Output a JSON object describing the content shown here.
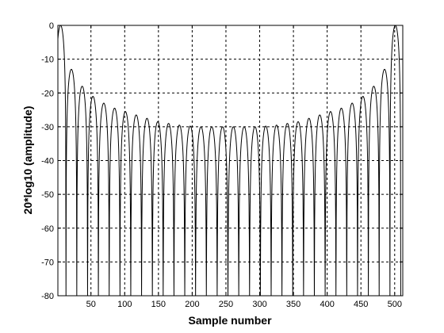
{
  "chart_data": {
    "type": "line",
    "title": "",
    "xlabel": "Sample number",
    "ylabel": "20*log10 (amplitude)",
    "xlim": [
      1,
      512
    ],
    "ylim": [
      -80,
      0
    ],
    "xticks": [
      50,
      100,
      150,
      200,
      250,
      300,
      350,
      400,
      450,
      500
    ],
    "yticks": [
      0,
      -10,
      -20,
      -30,
      -40,
      -50,
      -60,
      -70,
      -80
    ],
    "grid": true,
    "series": [
      {
        "description": "Periodic lobed magnitude curve; each lobe peaks at the listed value and nulls drop below the lower limit",
        "lobe_center_x": [
          5,
          21,
          37,
          53,
          69,
          85,
          101,
          117,
          133,
          149,
          165,
          181,
          197,
          213,
          229,
          245,
          261,
          277,
          293,
          309,
          325,
          341,
          357,
          373,
          389,
          405,
          421,
          437,
          453,
          469,
          485,
          501
        ],
        "lobe_peak_y": [
          0,
          -13,
          -18,
          -21,
          -23,
          -24.5,
          -25.5,
          -26.5,
          -27.5,
          -28.5,
          -29,
          -29.5,
          -29.8,
          -30,
          -30,
          -30,
          -30,
          -30,
          -30,
          -29.8,
          -29.5,
          -29,
          -28.5,
          -27.5,
          -26.5,
          -25.5,
          -24.5,
          -23,
          -21,
          -18,
          -13,
          0
        ]
      }
    ]
  }
}
